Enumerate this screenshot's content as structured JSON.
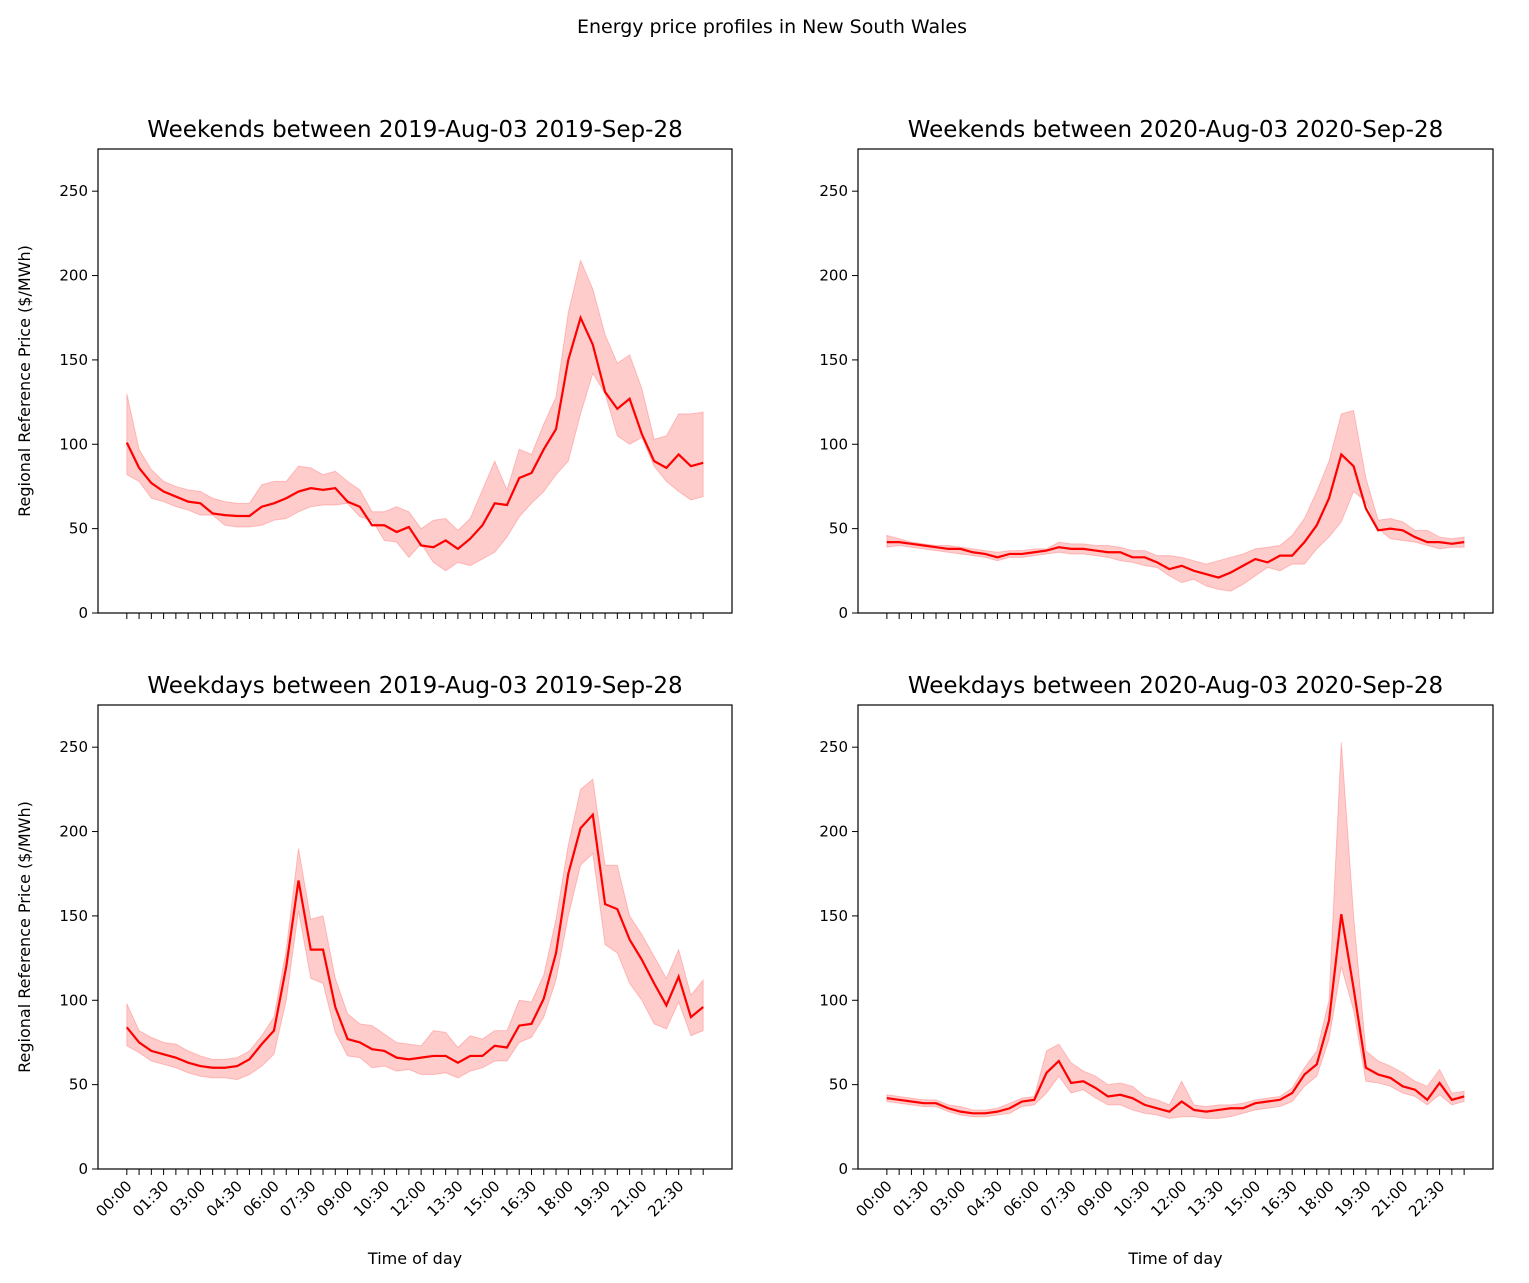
{
  "title": "Energy price profiles in New South Wales",
  "chart_data": [
    {
      "type": "line",
      "title": "Weekends between 2019-Aug-03 2019-Sep-28",
      "ylabel": "Regional Reference Price ($/MWh)",
      "categories": [
        null,
        null,
        null,
        null,
        null,
        null,
        null,
        null,
        null,
        null,
        null,
        null,
        null,
        null,
        null,
        null,
        null,
        null,
        null,
        null,
        null,
        null,
        null,
        null,
        null,
        null,
        null,
        null,
        null,
        null,
        null,
        null,
        null,
        null,
        null,
        null,
        null,
        null,
        null,
        null,
        null,
        null,
        null,
        null,
        null,
        null,
        null,
        null
      ],
      "ylim": [
        0,
        275
      ],
      "yticks": [
        0,
        50,
        100,
        150,
        200,
        250
      ],
      "color": "#ff0000",
      "band_color": "#ff0000",
      "values": [
        101,
        86,
        77,
        72,
        69,
        66,
        65,
        59,
        58,
        57.5,
        57.5,
        63,
        65,
        68,
        72,
        74,
        73,
        74,
        66,
        63,
        52,
        52,
        48,
        51,
        40,
        39,
        43,
        38,
        44,
        52,
        65,
        64,
        80,
        83,
        97,
        109,
        150,
        175,
        159,
        131,
        121,
        127,
        106,
        90,
        86,
        94,
        87,
        89
      ],
      "upper": [
        130,
        97,
        85,
        78,
        75,
        73,
        72,
        68,
        66,
        65,
        65,
        76,
        78,
        78,
        87,
        86,
        82,
        84,
        78,
        73,
        60,
        60,
        63,
        60,
        50,
        55,
        56,
        49,
        56,
        73,
        90,
        73,
        97,
        94,
        112,
        128,
        178,
        209,
        192,
        165,
        148,
        153,
        133,
        103,
        105,
        118,
        118,
        119
      ],
      "lower": [
        82,
        78,
        68,
        66,
        63,
        61,
        58,
        58,
        52,
        51,
        51,
        52,
        55,
        56,
        60,
        63,
        64,
        64,
        65,
        57,
        55,
        43,
        42,
        33,
        41,
        30,
        25,
        30,
        28,
        32,
        36,
        45,
        57,
        65,
        72,
        82,
        90,
        118,
        142,
        130,
        105,
        100,
        104,
        87,
        78,
        72,
        67,
        69
      ]
    },
    {
      "type": "line",
      "title": "Weekends between 2020-Aug-03 2020-Sep-28",
      "categories": [
        null,
        null,
        null,
        null,
        null,
        null,
        null,
        null,
        null,
        null,
        null,
        null,
        null,
        null,
        null,
        null,
        null,
        null,
        null,
        null,
        null,
        null,
        null,
        null,
        null,
        null,
        null,
        null,
        null,
        null,
        null,
        null,
        null,
        null,
        null,
        null,
        null,
        null,
        null,
        null,
        null,
        null,
        null,
        null,
        null,
        null,
        null,
        null
      ],
      "ylim": [
        0,
        275
      ],
      "yticks": [
        0,
        50,
        100,
        150,
        200,
        250
      ],
      "color": "#ff0000",
      "band_color": "#ff0000",
      "values": [
        42,
        42,
        41,
        40,
        39,
        38,
        38,
        36,
        35,
        33,
        35,
        35,
        36,
        37,
        39,
        38,
        38,
        37,
        36,
        36,
        33,
        33,
        30,
        26,
        28,
        25,
        23,
        21,
        24,
        28,
        32,
        30,
        34,
        34,
        42,
        52,
        68,
        94,
        87,
        62,
        49,
        50,
        49,
        45,
        42,
        42,
        41,
        42
      ],
      "upper": [
        46,
        44,
        42,
        41,
        40,
        40,
        39,
        38,
        37,
        36,
        37,
        37,
        38,
        38,
        42,
        41,
        41,
        40,
        40,
        39,
        37,
        37,
        34,
        34,
        33,
        31,
        29,
        31,
        33,
        35,
        38,
        39,
        40,
        46,
        56,
        72,
        90,
        118,
        120,
        80,
        55,
        56,
        54,
        49,
        49,
        45,
        44,
        45
      ],
      "lower": [
        39,
        40,
        39,
        38,
        37,
        36,
        35,
        34,
        33,
        31,
        33,
        33,
        34,
        35,
        36,
        35,
        35,
        34,
        33,
        31,
        30,
        28,
        27,
        22,
        18,
        20,
        16,
        14,
        13,
        17,
        22,
        27,
        25,
        29,
        29,
        38,
        45,
        54,
        72,
        66,
        50,
        44,
        43,
        42,
        40,
        38,
        39,
        39
      ]
    },
    {
      "type": "line",
      "title": "Weekdays between 2019-Aug-03 2019-Sep-28",
      "ylabel": "Regional Reference Price ($/MWh)",
      "xlabel": "Time of day",
      "categories": [
        "00:00",
        null,
        null,
        "01:30",
        null,
        null,
        "03:00",
        null,
        null,
        "04:30",
        null,
        null,
        "06:00",
        null,
        null,
        "07:30",
        null,
        null,
        "09:00",
        null,
        null,
        "10:30",
        null,
        null,
        "12:00",
        null,
        null,
        "13:30",
        null,
        null,
        "15:00",
        null,
        null,
        "16:30",
        null,
        null,
        "18:00",
        null,
        null,
        "19:30",
        null,
        null,
        "21:00",
        null,
        null,
        "22:30",
        null,
        null
      ],
      "ylim": [
        0,
        275
      ],
      "yticks": [
        0,
        50,
        100,
        150,
        200,
        250
      ],
      "color": "#ff0000",
      "band_color": "#ff0000",
      "values": [
        84,
        75,
        70,
        68,
        66,
        63,
        61,
        60,
        60,
        61,
        65,
        74,
        82,
        120,
        171,
        130,
        130,
        96,
        77,
        75,
        71,
        70,
        66,
        65,
        66,
        67,
        67,
        63,
        67,
        67,
        73,
        72,
        85,
        86,
        101,
        128,
        175,
        202,
        210,
        157,
        154,
        136,
        124,
        110,
        97,
        114,
        90,
        96
      ],
      "upper": [
        98,
        82,
        78,
        75,
        74,
        70,
        67,
        65,
        65,
        66,
        70,
        79,
        90,
        130,
        190,
        148,
        150,
        113,
        92,
        86,
        85,
        80,
        75,
        74,
        73,
        82,
        81,
        72,
        79,
        77,
        82,
        82,
        100,
        99,
        115,
        148,
        192,
        225,
        231,
        180,
        180,
        150,
        139,
        126,
        113,
        130,
        103,
        112
      ],
      "lower": [
        73,
        69,
        64,
        62,
        60,
        57,
        55,
        54,
        54,
        53,
        56,
        61,
        68,
        100,
        153,
        113,
        110,
        81,
        67,
        66,
        60,
        61,
        58,
        59,
        56,
        56,
        57,
        54,
        58,
        60,
        64,
        64,
        75,
        78,
        90,
        112,
        150,
        180,
        187,
        133,
        128,
        110,
        100,
        86,
        83,
        99,
        79,
        82
      ]
    },
    {
      "type": "line",
      "title": "Weekdays between 2020-Aug-03 2020-Sep-28",
      "xlabel": "Time of day",
      "categories": [
        "00:00",
        null,
        null,
        "01:30",
        null,
        null,
        "03:00",
        null,
        null,
        "04:30",
        null,
        null,
        "06:00",
        null,
        null,
        "07:30",
        null,
        null,
        "09:00",
        null,
        null,
        "10:30",
        null,
        null,
        "12:00",
        null,
        null,
        "13:30",
        null,
        null,
        "15:00",
        null,
        null,
        "16:30",
        null,
        null,
        "18:00",
        null,
        null,
        "19:30",
        null,
        null,
        "21:00",
        null,
        null,
        "22:30",
        null,
        null
      ],
      "ylim": [
        0,
        275
      ],
      "yticks": [
        0,
        50,
        100,
        150,
        200,
        250
      ],
      "color": "#ff0000",
      "band_color": "#ff0000",
      "values": [
        42,
        41,
        40,
        39,
        39,
        36,
        34,
        33,
        33,
        34,
        36,
        40,
        41,
        57,
        64,
        51,
        52,
        48,
        43,
        44,
        42,
        38,
        36,
        34,
        40,
        35,
        34,
        35,
        36,
        36,
        39,
        40,
        41,
        45,
        56,
        62,
        88,
        151,
        107,
        60,
        56,
        54,
        49,
        47,
        41,
        51,
        41,
        43
      ],
      "upper": [
        44,
        43,
        42,
        41,
        41,
        38,
        37,
        35,
        35,
        36,
        39,
        42,
        43,
        70,
        74,
        63,
        58,
        55,
        50,
        51,
        49,
        43,
        41,
        38,
        52,
        38,
        37,
        38,
        38,
        39,
        41,
        42,
        43,
        48,
        60,
        70,
        100,
        253,
        150,
        70,
        64,
        61,
        57,
        52,
        49,
        59,
        45,
        46
      ],
      "lower": [
        40,
        39,
        38,
        37,
        37,
        34,
        32,
        31,
        31,
        32,
        33,
        37,
        38,
        45,
        55,
        45,
        47,
        42,
        38,
        38,
        35,
        33,
        32,
        30,
        31,
        31,
        30,
        30,
        31,
        33,
        35,
        36,
        37,
        40,
        49,
        55,
        77,
        120,
        94,
        52,
        51,
        49,
        45,
        43,
        38,
        44,
        38,
        40
      ]
    }
  ]
}
